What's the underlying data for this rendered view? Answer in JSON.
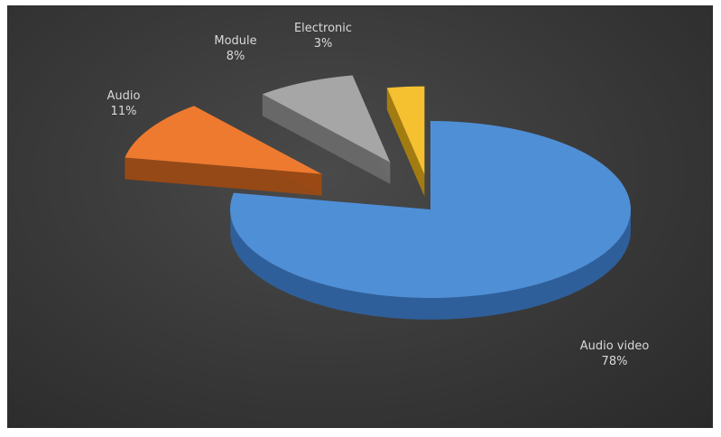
{
  "chart_data": {
    "type": "pie",
    "title": "",
    "slices": [
      {
        "label": "Audio video",
        "value": 78,
        "percent_label": "78%",
        "color": "#4f8fd6",
        "side_color": "#2f5f9a"
      },
      {
        "label": "Audio",
        "value": 11,
        "percent_label": "11%",
        "color": "#ee7a30",
        "side_color": "#9a4a14"
      },
      {
        "label": "Module",
        "value": 8,
        "percent_label": "8%",
        "color": "#a6a6a6",
        "side_color": "#6a6a6a"
      },
      {
        "label": "Electronic",
        "value": 3,
        "percent_label": "3%",
        "color": "#f5c130",
        "side_color": "#a8800f"
      }
    ],
    "legend": "none",
    "style": "3d-exploded",
    "background": "#3a3a3a"
  }
}
